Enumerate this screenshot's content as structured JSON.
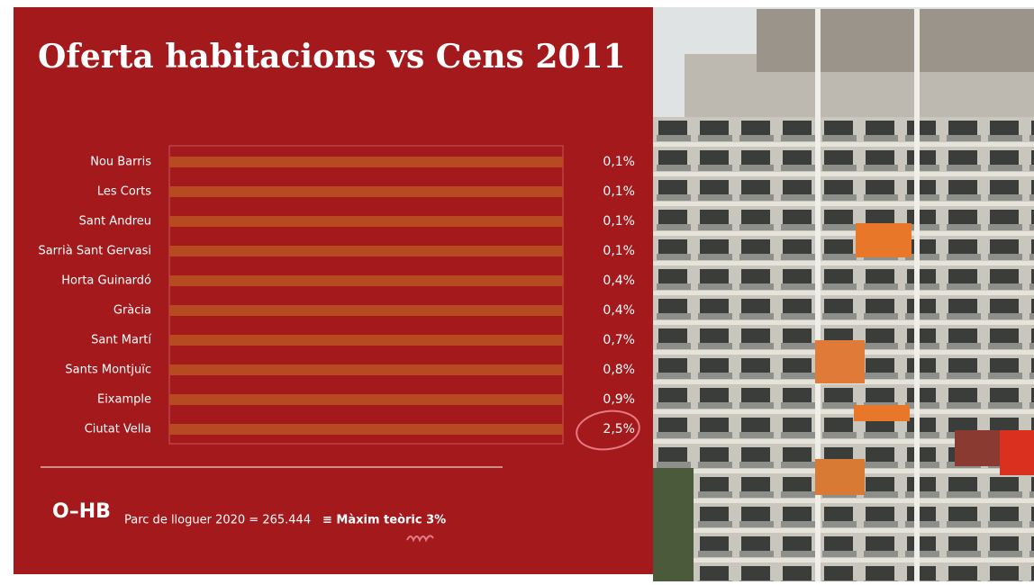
{
  "chart_data": {
    "type": "bar",
    "orientation": "horizontal",
    "title": "Oferta habitacions vs Cens 2011",
    "categories": [
      "Nou Barris",
      "Les Corts",
      "Sant Andreu",
      "Sarrià Sant Gervasi",
      "Horta Guinardó",
      "Gràcia",
      "Sant Martí",
      "Sants Montjuïc",
      "Eixample",
      "Ciutat Vella"
    ],
    "values": [
      0.1,
      0.1,
      0.1,
      0.1,
      0.4,
      0.4,
      0.7,
      0.8,
      0.9,
      2.5
    ],
    "value_labels": [
      "0,1%",
      "0,1%",
      "0,1%",
      "0,1%",
      "0,4%",
      "0,4%",
      "0,7%",
      "0,8%",
      "0,9%",
      "2,5%"
    ],
    "color": "#d8435a",
    "track_color": "#b84a22",
    "xlim": [
      0,
      3
    ]
  },
  "footer": {
    "logo": "O–HB",
    "text": "Parc de lloguer 2020 = 265.444",
    "highlight": "≡ Màxim teòric 3%"
  }
}
